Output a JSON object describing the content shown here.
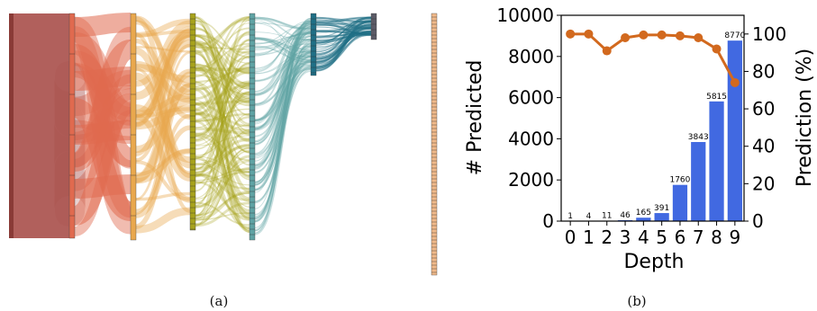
{
  "captions": {
    "a": "(a)",
    "b": "(b)"
  },
  "colors": {
    "bar": "#4169e1",
    "line": "#d2691e",
    "sankey_levels": [
      "#a94f4a",
      "#e06a4f",
      "#e9a84d",
      "#a7a21c",
      "#5fa3a4",
      "#1f6f86",
      "#5b5a66",
      "#f0b98a"
    ]
  },
  "chart_data": [
    {
      "type": "sankey",
      "levels": 8,
      "level_colors": [
        "#a94f4a",
        "#e06a4f",
        "#e9a84d",
        "#a7a21c",
        "#5fa3a4",
        "#1f6f86",
        "#5b5a66",
        "#f0b98a"
      ]
    },
    {
      "type": "bar+line",
      "categories": [
        "0",
        "1",
        "2",
        "3",
        "4",
        "5",
        "6",
        "7",
        "8",
        "9"
      ],
      "bar_values": [
        1,
        4,
        11,
        46,
        165,
        391,
        1760,
        3843,
        5815,
        8770
      ],
      "bar_labels": [
        "1",
        "4",
        "11",
        "46",
        "165",
        "391",
        "1760",
        "3843",
        "5815",
        "8770"
      ],
      "line_values": [
        100,
        100,
        91,
        98,
        99.5,
        99.5,
        99,
        98,
        92,
        74
      ],
      "xlabel": "Depth",
      "ylabel_left": "# Predicted",
      "ylabel_right": "Prediction (%)",
      "ylim_left": [
        0,
        10000
      ],
      "ylim_right": [
        0,
        110
      ],
      "yticks_left": [
        "0",
        "2000",
        "4000",
        "6000",
        "8000",
        "10000"
      ],
      "yticks_right": [
        "0",
        "20",
        "40",
        "60",
        "80",
        "100"
      ],
      "grid": false
    }
  ]
}
